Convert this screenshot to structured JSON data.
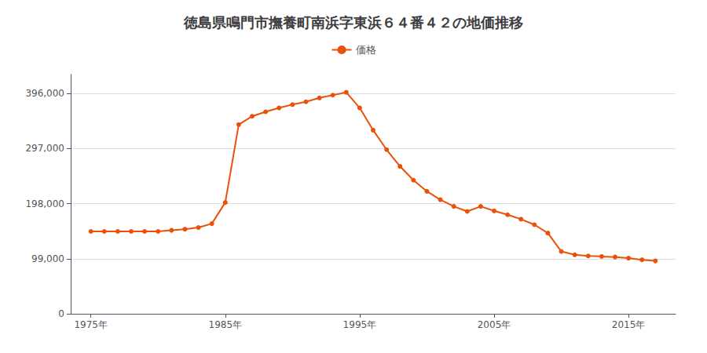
{
  "chart_data": {
    "type": "line",
    "title": "徳島県鳴門市撫養町南浜字東浜６４番４２の地価推移",
    "legend": "top",
    "grid": "y",
    "xlim": [
      1973.5,
      2018.5
    ],
    "xticks": [
      {
        "value": 1975,
        "label": "1975年"
      },
      {
        "value": 1985,
        "label": "1985年"
      },
      {
        "value": 1995,
        "label": "1995年"
      },
      {
        "value": 2005,
        "label": "2005年"
      },
      {
        "value": 2015,
        "label": "2015年"
      }
    ],
    "ylim": [
      0,
      430000
    ],
    "yticks": [
      0,
      {
        "value": 99000,
        "label": "99,000"
      },
      {
        "value": 198000,
        "label": "198,000"
      },
      {
        "value": 297000,
        "label": "297,000"
      },
      {
        "value": 396000,
        "label": "396,000"
      }
    ],
    "x": [
      1975,
      1976,
      1977,
      1978,
      1979,
      1980,
      1981,
      1982,
      1983,
      1984,
      1985,
      1986,
      1987,
      1988,
      1989,
      1990,
      1991,
      1992,
      1993,
      1994,
      1995,
      1996,
      1997,
      1998,
      1999,
      2000,
      2001,
      2002,
      2003,
      2004,
      2005,
      2006,
      2007,
      2008,
      2009,
      2010,
      2011,
      2012,
      2013,
      2014,
      2015,
      2016,
      2017
    ],
    "series": [
      {
        "name": "価格",
        "color": "#E8520A",
        "marker": "circle",
        "values": [
          148000,
          148000,
          148000,
          148000,
          148000,
          148000,
          150000,
          152000,
          155000,
          162000,
          200000,
          340000,
          355000,
          363000,
          370000,
          376000,
          381000,
          388000,
          393000,
          398000,
          370000,
          330000,
          295000,
          265000,
          240000,
          220000,
          205000,
          193000,
          184000,
          193000,
          185000,
          178000,
          170000,
          160000,
          145000,
          112000,
          106000,
          104000,
          103000,
          102000,
          100000,
          97000,
          95000
        ]
      }
    ]
  }
}
